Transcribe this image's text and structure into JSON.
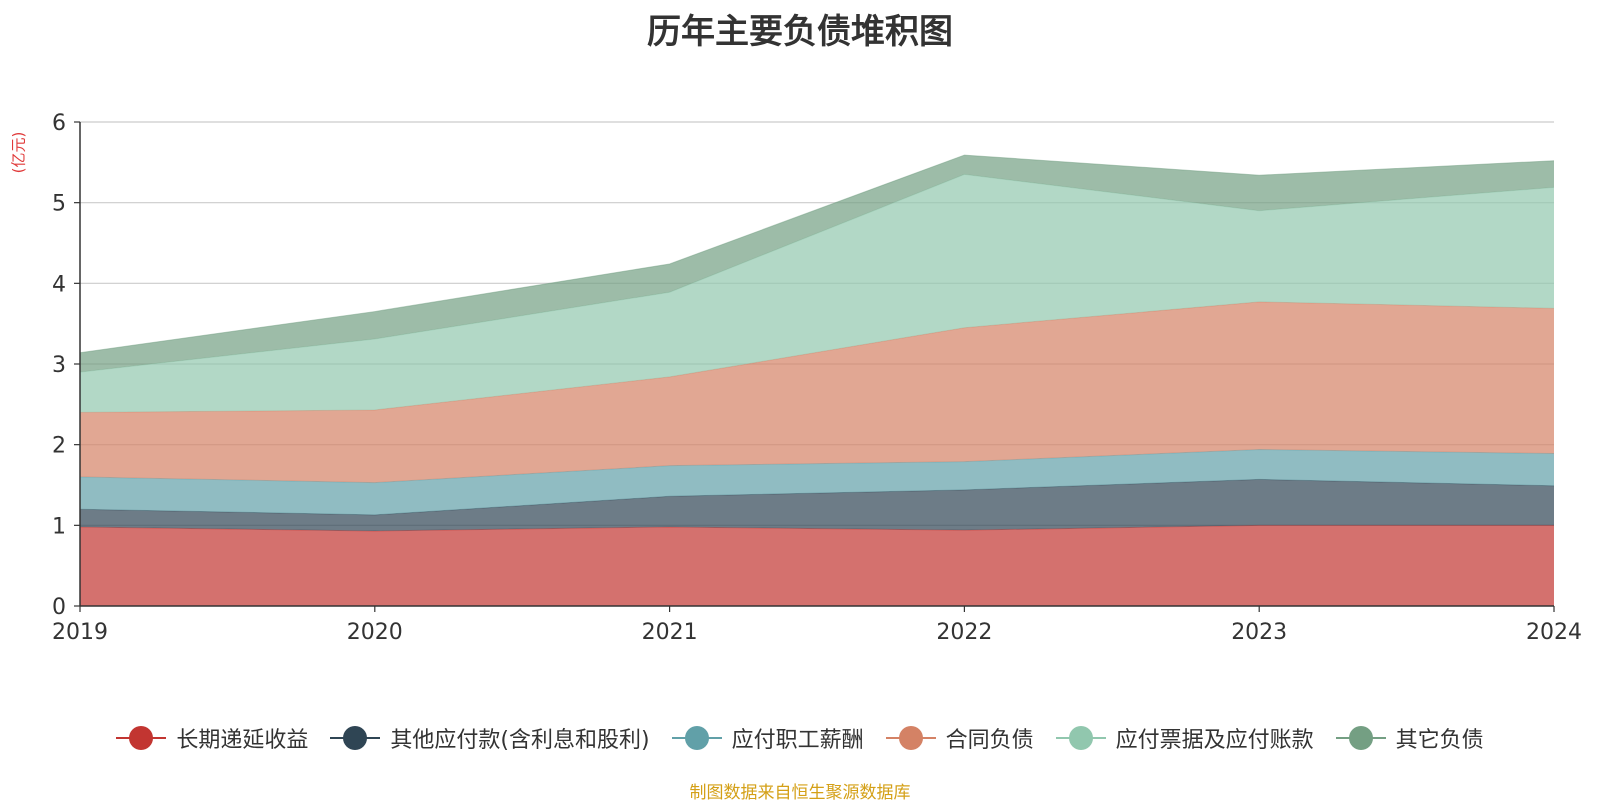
{
  "chart_data": {
    "type": "area",
    "stacked": true,
    "title": "历年主要负债堆积图",
    "ylabel": "(亿元)",
    "xlabel": "",
    "x": [
      "2019",
      "2020",
      "2021",
      "2022",
      "2023",
      "2024"
    ],
    "ylim": [
      0,
      6
    ],
    "yticks": [
      0,
      1,
      2,
      3,
      4,
      5,
      6
    ],
    "grid": true,
    "legend_position": "bottom",
    "series": [
      {
        "name": "长期递延收益",
        "color": "#c23531",
        "values": [
          0.98,
          0.93,
          0.98,
          0.94,
          1.0,
          1.0
        ]
      },
      {
        "name": "其他应付款(含利息和股利)",
        "color": "#2f4554",
        "values": [
          0.22,
          0.2,
          0.38,
          0.5,
          0.57,
          0.49
        ]
      },
      {
        "name": "应付职工薪酬",
        "color": "#61a0a8",
        "values": [
          0.4,
          0.4,
          0.38,
          0.35,
          0.37,
          0.4
        ]
      },
      {
        "name": "合同负债",
        "color": "#d48265",
        "values": [
          0.8,
          0.9,
          1.1,
          1.66,
          1.83,
          1.8
        ]
      },
      {
        "name": "应付票据及应付账款",
        "color": "#91c7ae",
        "values": [
          0.5,
          0.88,
          1.05,
          1.9,
          1.13,
          1.5
        ]
      },
      {
        "name": "其它负债",
        "color": "#749f83",
        "values": [
          0.24,
          0.34,
          0.35,
          0.24,
          0.44,
          0.33
        ]
      }
    ]
  },
  "source_note": "制图数据来自恒生聚源数据库"
}
